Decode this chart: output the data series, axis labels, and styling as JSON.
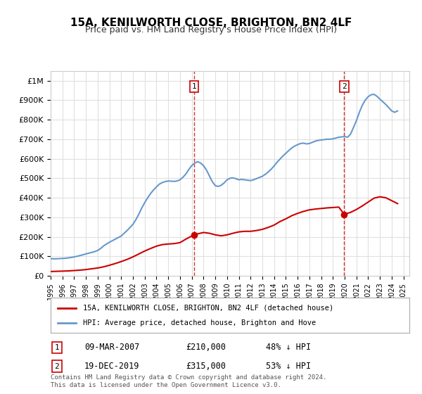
{
  "title": "15A, KENILWORTH CLOSE, BRIGHTON, BN2 4LF",
  "subtitle": "Price paid vs. HM Land Registry's House Price Index (HPI)",
  "background_color": "#ffffff",
  "grid_color": "#e0e0e0",
  "ylim": [
    0,
    1050000
  ],
  "xlim_start": 1995.0,
  "xlim_end": 2025.5,
  "yticks": [
    0,
    100000,
    200000,
    300000,
    400000,
    500000,
    600000,
    700000,
    800000,
    900000,
    1000000
  ],
  "ytick_labels": [
    "£0",
    "£100K",
    "£200K",
    "£300K",
    "£400K",
    "£500K",
    "£600K",
    "£700K",
    "£800K",
    "£900K",
    "£1M"
  ],
  "hpi_color": "#6699cc",
  "price_color": "#cc0000",
  "transaction1_date": 2007.19,
  "transaction1_price": 210000,
  "transaction1_label": "1",
  "transaction1_date_str": "09-MAR-2007",
  "transaction1_pct": "48% ↓ HPI",
  "transaction2_date": 2019.96,
  "transaction2_price": 315000,
  "transaction2_label": "2",
  "transaction2_date_str": "19-DEC-2019",
  "transaction2_pct": "53% ↓ HPI",
  "legend_label_price": "15A, KENILWORTH CLOSE, BRIGHTON, BN2 4LF (detached house)",
  "legend_label_hpi": "HPI: Average price, detached house, Brighton and Hove",
  "footer": "Contains HM Land Registry data © Crown copyright and database right 2024.\nThis data is licensed under the Open Government Licence v3.0.",
  "hpi_data": {
    "years": [
      1995.0,
      1995.25,
      1995.5,
      1995.75,
      1996.0,
      1996.25,
      1996.5,
      1996.75,
      1997.0,
      1997.25,
      1997.5,
      1997.75,
      1998.0,
      1998.25,
      1998.5,
      1998.75,
      1999.0,
      1999.25,
      1999.5,
      1999.75,
      2000.0,
      2000.25,
      2000.5,
      2000.75,
      2001.0,
      2001.25,
      2001.5,
      2001.75,
      2002.0,
      2002.25,
      2002.5,
      2002.75,
      2003.0,
      2003.25,
      2003.5,
      2003.75,
      2004.0,
      2004.25,
      2004.5,
      2004.75,
      2005.0,
      2005.25,
      2005.5,
      2005.75,
      2006.0,
      2006.25,
      2006.5,
      2006.75,
      2007.0,
      2007.25,
      2007.5,
      2007.75,
      2008.0,
      2008.25,
      2008.5,
      2008.75,
      2009.0,
      2009.25,
      2009.5,
      2009.75,
      2010.0,
      2010.25,
      2010.5,
      2010.75,
      2011.0,
      2011.25,
      2011.5,
      2011.75,
      2012.0,
      2012.25,
      2012.5,
      2012.75,
      2013.0,
      2013.25,
      2013.5,
      2013.75,
      2014.0,
      2014.25,
      2014.5,
      2014.75,
      2015.0,
      2015.25,
      2015.5,
      2015.75,
      2016.0,
      2016.25,
      2016.5,
      2016.75,
      2017.0,
      2017.25,
      2017.5,
      2017.75,
      2018.0,
      2018.25,
      2018.5,
      2018.75,
      2019.0,
      2019.25,
      2019.5,
      2019.75,
      2020.0,
      2020.25,
      2020.5,
      2020.75,
      2021.0,
      2021.25,
      2021.5,
      2021.75,
      2022.0,
      2022.25,
      2022.5,
      2022.75,
      2023.0,
      2023.25,
      2023.5,
      2023.75,
      2024.0,
      2024.25,
      2024.5
    ],
    "values": [
      88000,
      87000,
      87500,
      88000,
      89000,
      90000,
      92000,
      94000,
      97000,
      100000,
      104000,
      108000,
      112000,
      116000,
      120000,
      124000,
      130000,
      140000,
      153000,
      163000,
      172000,
      180000,
      188000,
      196000,
      204000,
      218000,
      232000,
      248000,
      264000,
      288000,
      316000,
      348000,
      375000,
      400000,
      422000,
      440000,
      456000,
      470000,
      478000,
      483000,
      486000,
      485000,
      484000,
      486000,
      492000,
      505000,
      522000,
      545000,
      565000,
      578000,
      585000,
      578000,
      564000,
      542000,
      512000,
      482000,
      462000,
      458000,
      464000,
      476000,
      492000,
      500000,
      502000,
      498000,
      492000,
      494000,
      492000,
      490000,
      488000,
      492000,
      498000,
      504000,
      510000,
      520000,
      532000,
      546000,
      563000,
      582000,
      598000,
      614000,
      628000,
      642000,
      655000,
      665000,
      672000,
      678000,
      680000,
      676000,
      678000,
      684000,
      690000,
      694000,
      696000,
      698000,
      700000,
      700000,
      702000,
      706000,
      710000,
      712000,
      714000,
      710000,
      726000,
      760000,
      795000,
      838000,
      874000,
      900000,
      918000,
      928000,
      930000,
      920000,
      905000,
      892000,
      878000,
      862000,
      845000,
      838000,
      845000
    ]
  },
  "price_data": {
    "years": [
      1995.0,
      1995.5,
      1996.0,
      1996.5,
      1997.0,
      1997.5,
      1998.0,
      1998.5,
      1999.0,
      1999.5,
      2000.0,
      2000.5,
      2001.0,
      2001.5,
      2002.0,
      2002.5,
      2003.0,
      2003.5,
      2004.0,
      2004.5,
      2005.0,
      2005.5,
      2006.0,
      2006.5,
      2007.19,
      2007.5,
      2008.0,
      2008.5,
      2009.0,
      2009.5,
      2010.0,
      2010.5,
      2011.0,
      2011.5,
      2012.0,
      2012.5,
      2013.0,
      2013.5,
      2014.0,
      2014.5,
      2015.0,
      2015.5,
      2016.0,
      2016.5,
      2017.0,
      2017.5,
      2018.0,
      2018.5,
      2019.0,
      2019.5,
      2019.96,
      2020.5,
      2021.0,
      2021.5,
      2022.0,
      2022.5,
      2023.0,
      2023.5,
      2024.0,
      2024.5
    ],
    "values": [
      22000,
      23000,
      24000,
      25000,
      27000,
      29000,
      32000,
      36000,
      40000,
      46000,
      54000,
      63000,
      73000,
      84000,
      97000,
      112000,
      127000,
      140000,
      152000,
      160000,
      163000,
      165000,
      170000,
      188000,
      210000,
      215000,
      222000,
      218000,
      210000,
      205000,
      210000,
      218000,
      225000,
      228000,
      228000,
      232000,
      238000,
      248000,
      260000,
      278000,
      292000,
      308000,
      320000,
      330000,
      338000,
      342000,
      345000,
      348000,
      350000,
      352000,
      315000,
      325000,
      340000,
      358000,
      378000,
      398000,
      405000,
      400000,
      385000,
      370000
    ]
  }
}
